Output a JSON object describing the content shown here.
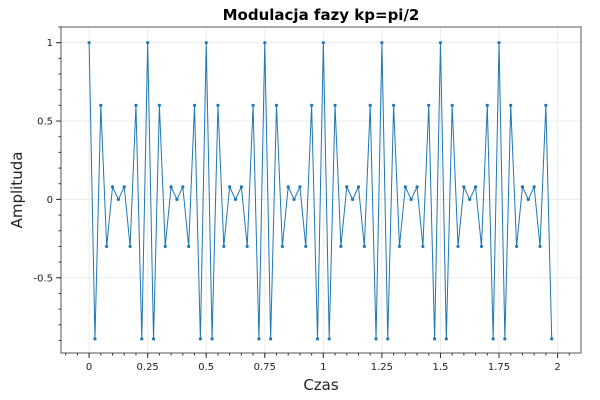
{
  "chart_data": {
    "type": "line",
    "title": "Modulacja fazy kp=pi/2",
    "xlabel": "Czas",
    "ylabel": "Amplituda",
    "xlim": [
      -0.12,
      2.1
    ],
    "ylim": [
      -0.98,
      1.1
    ],
    "xticks": [
      0,
      0.25,
      0.5,
      0.75,
      1,
      1.25,
      1.5,
      1.75,
      2
    ],
    "xtick_labels": [
      "0",
      "0.25",
      "0.5",
      "0.75",
      "1",
      "1.25",
      "1.5",
      "1.75",
      "2"
    ],
    "yticks": [
      1,
      0.5,
      0,
      -0.5
    ],
    "ytick_labels": [
      "1",
      "0.5",
      "0",
      "-0.5"
    ],
    "grid": true,
    "legend": "none",
    "series": [
      {
        "color": "#1f77b4",
        "marker": "point",
        "x": [
          0,
          0.025,
          0.05,
          0.075,
          0.1,
          0.125,
          0.15,
          0.175,
          0.2,
          0.225,
          0.25,
          0.275,
          0.3,
          0.325,
          0.35,
          0.375,
          0.4,
          0.425,
          0.45,
          0.475,
          0.5,
          0.525,
          0.55,
          0.575,
          0.6,
          0.625,
          0.65,
          0.675,
          0.7,
          0.725,
          0.75,
          0.775,
          0.8,
          0.825,
          0.85,
          0.875,
          0.9,
          0.925,
          0.95,
          0.975,
          1.0,
          1.025,
          1.05,
          1.075,
          1.1,
          1.125,
          1.15,
          1.175,
          1.2,
          1.225,
          1.25,
          1.275,
          1.3,
          1.325,
          1.35,
          1.375,
          1.4,
          1.425,
          1.45,
          1.475,
          1.5,
          1.525,
          1.55,
          1.575,
          1.6,
          1.625,
          1.65,
          1.675,
          1.7,
          1.725,
          1.75,
          1.775,
          1.8,
          1.825,
          1.85,
          1.875,
          1.9,
          1.925,
          1.95,
          1.975
        ],
        "y": [
          1,
          -0.89,
          0.6,
          -0.3,
          0.08,
          0,
          0.08,
          -0.3,
          0.6,
          -0.89,
          1,
          -0.89,
          0.6,
          -0.3,
          0.08,
          0,
          0.08,
          -0.3,
          0.6,
          -0.89,
          1,
          -0.89,
          0.6,
          -0.3,
          0.08,
          0,
          0.08,
          -0.3,
          0.6,
          -0.89,
          1,
          -0.89,
          0.6,
          -0.3,
          0.08,
          0,
          0.08,
          -0.3,
          0.6,
          -0.89,
          1,
          -0.89,
          0.6,
          -0.3,
          0.08,
          0,
          0.08,
          -0.3,
          0.6,
          -0.89,
          1,
          -0.89,
          0.6,
          -0.3,
          0.08,
          0,
          0.08,
          -0.3,
          0.6,
          -0.89,
          1,
          -0.89,
          0.6,
          -0.3,
          0.08,
          0,
          0.08,
          -0.3,
          0.6,
          -0.89,
          1,
          -0.89,
          0.6,
          -0.3,
          0.08,
          0,
          0.08,
          -0.3,
          0.6,
          -0.89
        ]
      }
    ]
  }
}
